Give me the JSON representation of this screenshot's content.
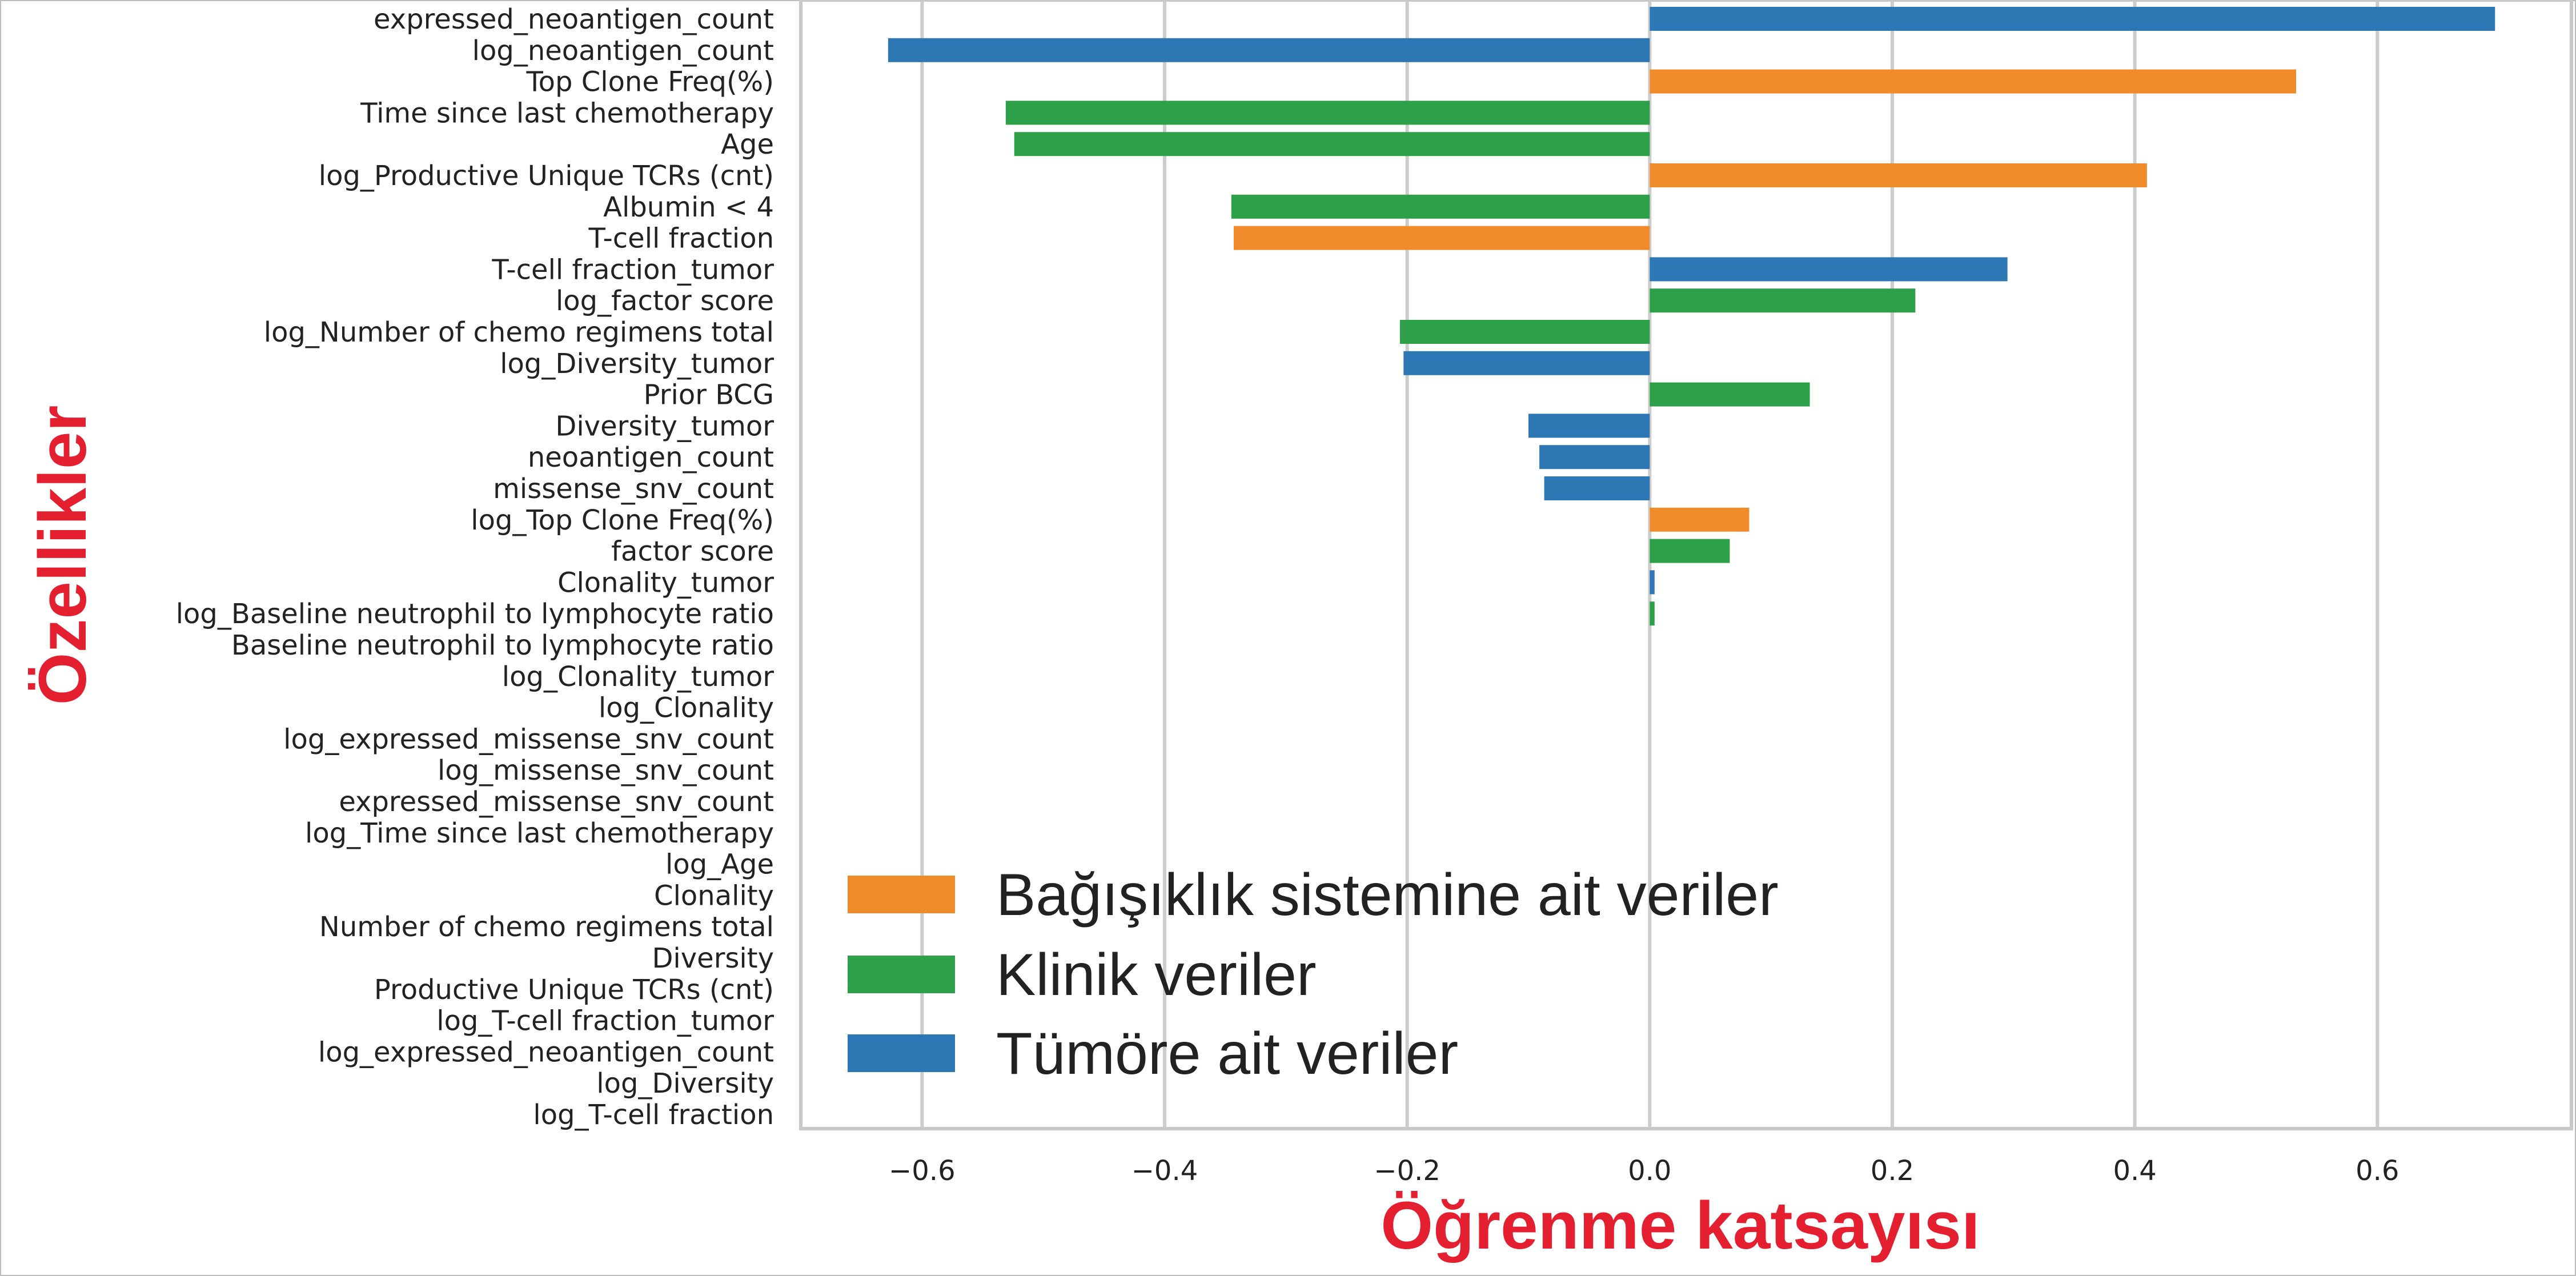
{
  "chart_data": {
    "type": "bar",
    "orientation": "horizontal",
    "xlabel": "Öğrenme katsayısı",
    "ylabel": "Özellikler",
    "xlim": [
      -0.7,
      0.76
    ],
    "xticks": [
      -0.6,
      -0.4,
      -0.2,
      0.0,
      0.2,
      0.4,
      0.6
    ],
    "xtick_labels": [
      "−0.6",
      "−0.4",
      "−0.2",
      "0.0",
      "0.2",
      "0.4",
      "0.6"
    ],
    "grid": "vertical",
    "legend_position": "lower-left",
    "legend": [
      {
        "key": "immune",
        "label": "Bağışıklık sistemine ait veriler",
        "color": "#f08b2c"
      },
      {
        "key": "clinical",
        "label": "Klinik veriler",
        "color": "#2fa04a"
      },
      {
        "key": "tumor",
        "label": "Tümöre ait veriler",
        "color": "#2d78b4"
      }
    ],
    "bars": [
      {
        "feature": "expressed_neoantigen_count",
        "value": 0.697,
        "group": "tumor"
      },
      {
        "feature": "log_neoantigen_count",
        "value": -0.628,
        "group": "tumor"
      },
      {
        "feature": "Top Clone Freq(%)",
        "value": 0.533,
        "group": "immune"
      },
      {
        "feature": "Time since last chemotherapy",
        "value": -0.531,
        "group": "clinical"
      },
      {
        "feature": "Age",
        "value": -0.524,
        "group": "clinical"
      },
      {
        "feature": "log_Productive Unique TCRs (cnt)",
        "value": 0.41,
        "group": "immune"
      },
      {
        "feature": "Albumin < 4",
        "value": -0.345,
        "group": "clinical"
      },
      {
        "feature": "T-cell fraction",
        "value": -0.343,
        "group": "immune"
      },
      {
        "feature": "T-cell fraction_tumor",
        "value": 0.295,
        "group": "tumor"
      },
      {
        "feature": "log_factor score",
        "value": 0.219,
        "group": "clinical"
      },
      {
        "feature": "log_Number of chemo regimens total",
        "value": -0.206,
        "group": "clinical"
      },
      {
        "feature": "log_Diversity_tumor",
        "value": -0.203,
        "group": "tumor"
      },
      {
        "feature": "Prior BCG",
        "value": 0.132,
        "group": "clinical"
      },
      {
        "feature": "Diversity_tumor",
        "value": -0.1,
        "group": "tumor"
      },
      {
        "feature": "neoantigen_count",
        "value": -0.091,
        "group": "tumor"
      },
      {
        "feature": "missense_snv_count",
        "value": -0.087,
        "group": "tumor"
      },
      {
        "feature": "log_Top Clone Freq(%)",
        "value": 0.082,
        "group": "immune"
      },
      {
        "feature": "factor score",
        "value": 0.066,
        "group": "clinical"
      },
      {
        "feature": "Clonality_tumor",
        "value": 0.004,
        "group": "tumor"
      },
      {
        "feature": "log_Baseline neutrophil to lymphocyte ratio",
        "value": 0.004,
        "group": "clinical"
      },
      {
        "feature": "Baseline neutrophil to lymphocyte ratio",
        "value": 0.0,
        "group": "clinical"
      },
      {
        "feature": "log_Clonality_tumor",
        "value": 0.0,
        "group": "tumor"
      },
      {
        "feature": "log_Clonality",
        "value": 0.0,
        "group": "immune"
      },
      {
        "feature": "log_expressed_missense_snv_count",
        "value": 0.0,
        "group": "tumor"
      },
      {
        "feature": "log_missense_snv_count",
        "value": 0.0,
        "group": "tumor"
      },
      {
        "feature": "expressed_missense_snv_count",
        "value": 0.0,
        "group": "tumor"
      },
      {
        "feature": "log_Time since last chemotherapy",
        "value": 0.0,
        "group": "clinical"
      },
      {
        "feature": "log_Age",
        "value": 0.0,
        "group": "clinical"
      },
      {
        "feature": "Clonality",
        "value": 0.0,
        "group": "immune"
      },
      {
        "feature": "Number of chemo regimens total",
        "value": 0.0,
        "group": "clinical"
      },
      {
        "feature": "Diversity",
        "value": 0.0,
        "group": "immune"
      },
      {
        "feature": "Productive Unique TCRs (cnt)",
        "value": 0.0,
        "group": "immune"
      },
      {
        "feature": "log_T-cell fraction_tumor",
        "value": 0.0,
        "group": "tumor"
      },
      {
        "feature": "log_expressed_neoantigen_count",
        "value": 0.0,
        "group": "tumor"
      },
      {
        "feature": "log_Diversity",
        "value": 0.0,
        "group": "immune"
      },
      {
        "feature": "log_T-cell fraction",
        "value": 0.0,
        "group": "immune"
      }
    ]
  }
}
